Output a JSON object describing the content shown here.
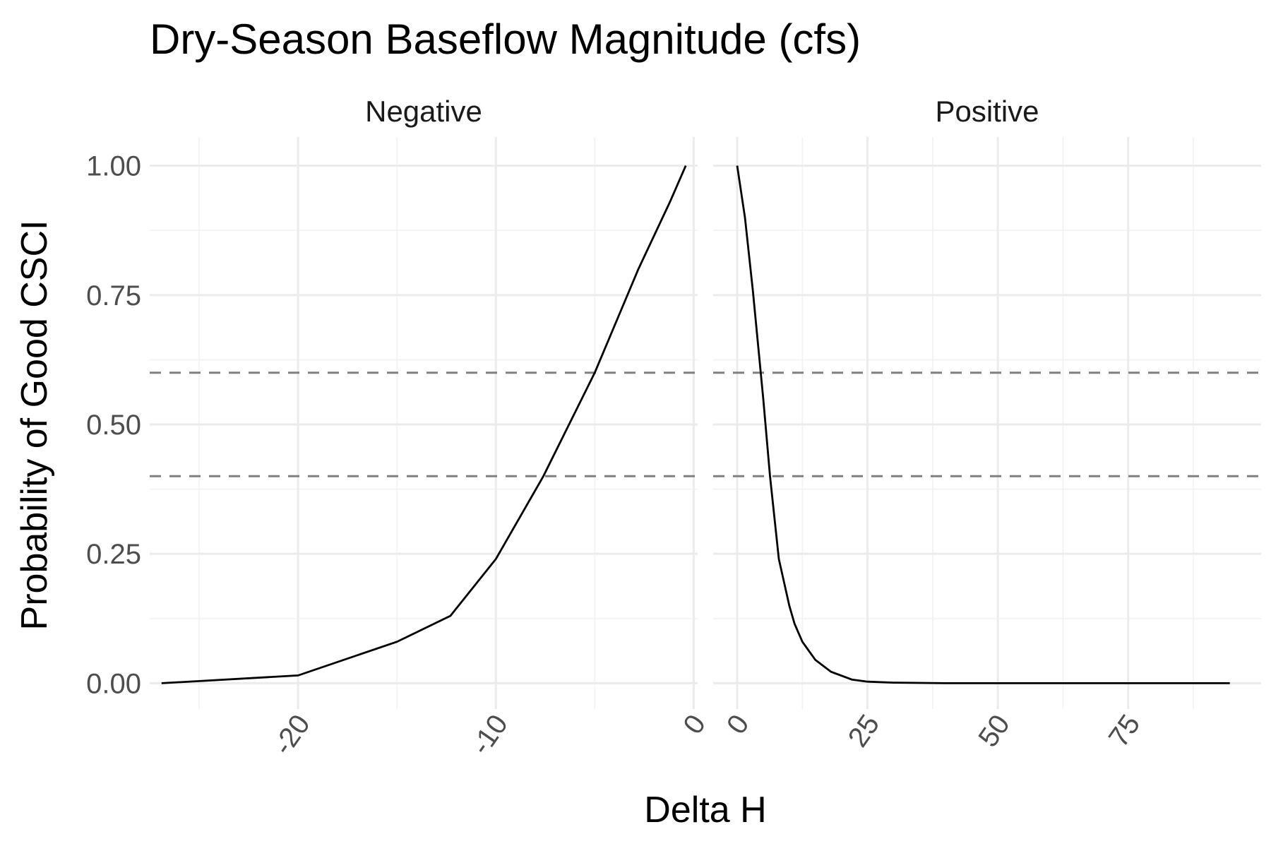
{
  "chart_data": {
    "type": "line",
    "title": "Dry-Season Baseflow Magnitude (cfs)",
    "xlabel": "Delta H",
    "ylabel": "Probability of Good CSCI",
    "ylim": [
      -0.05,
      1.05
    ],
    "y_ticks": [
      0,
      0.25,
      0.5,
      0.75,
      1
    ],
    "y_tick_labels": [
      "0.00",
      "0.25",
      "0.50",
      "0.75",
      "1.00"
    ],
    "x_tick_rotation_deg": -55,
    "grid": true,
    "reference_lines": [
      {
        "y": 0.6,
        "style": "dashed",
        "color": "#808080"
      },
      {
        "y": 0.4,
        "style": "dashed",
        "color": "#808080"
      }
    ],
    "line_color": "#000000",
    "panels": [
      {
        "name": "Negative",
        "xlim": [
          -27.5,
          0.2
        ],
        "x_ticks": [
          -20,
          -10,
          0
        ],
        "x_tick_labels": [
          "-20",
          "-10",
          "0"
        ],
        "x": [
          -26.9,
          -20,
          -15,
          -12.3,
          -10,
          -7.6,
          -5,
          -2.8,
          -1.2,
          -0.4
        ],
        "y": [
          0,
          0.015,
          0.08,
          0.13,
          0.24,
          0.4,
          0.6,
          0.8,
          0.93,
          1.0
        ]
      },
      {
        "name": "Positive",
        "xlim": [
          -4.6,
          100.5
        ],
        "x_ticks": [
          0,
          25,
          50,
          75
        ],
        "x_tick_labels": [
          "0",
          "25",
          "50",
          "75"
        ],
        "x": [
          0,
          1.5,
          3,
          5,
          6.3,
          8,
          10,
          11,
          12.5,
          15,
          18,
          22,
          25,
          30,
          40,
          60,
          94.5
        ],
        "y": [
          1.0,
          0.9,
          0.76,
          0.55,
          0.4,
          0.24,
          0.15,
          0.115,
          0.08,
          0.045,
          0.022,
          0.007,
          0.003,
          0.001,
          0,
          0,
          0
        ]
      }
    ]
  }
}
